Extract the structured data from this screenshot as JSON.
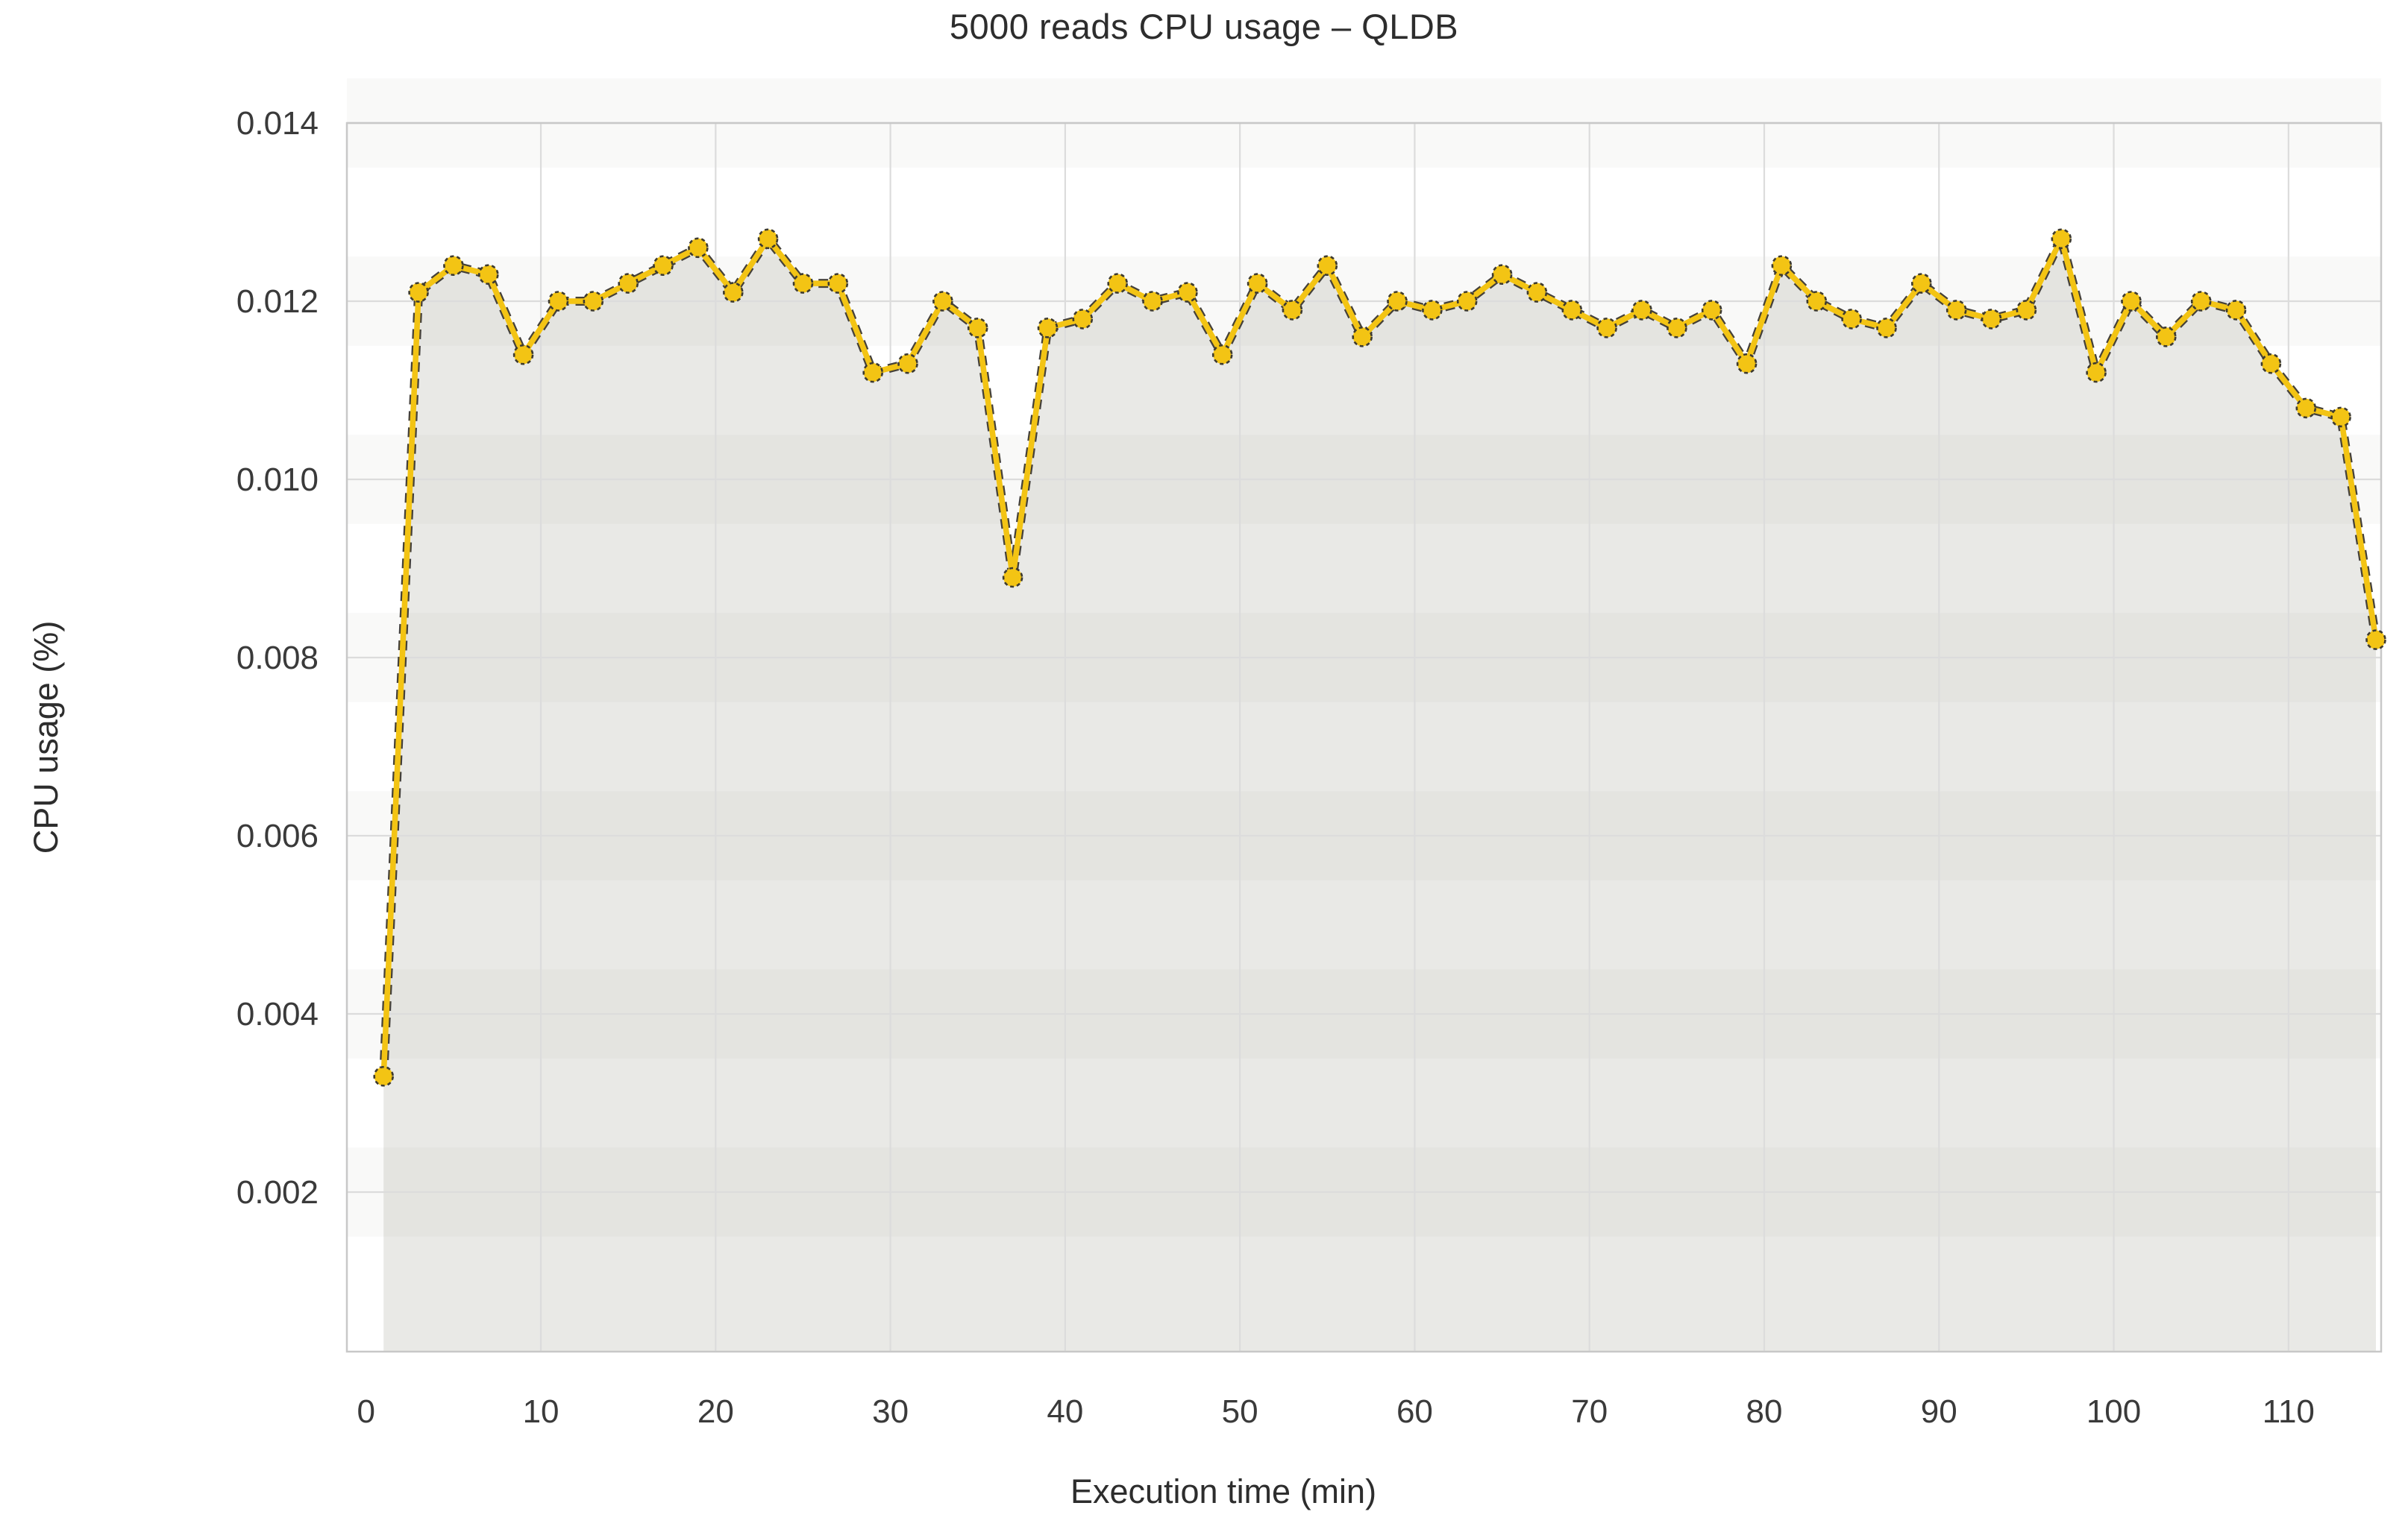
{
  "chart_data": {
    "type": "line",
    "title": "5000 reads CPU usage – QLDB",
    "xlabel": "Execution time (min)",
    "ylabel": "CPU usage (%)",
    "series_name": "CPU usage",
    "x": [
      1,
      3,
      5,
      7,
      9,
      11,
      13,
      15,
      17,
      19,
      21,
      23,
      25,
      27,
      29,
      31,
      33,
      35,
      37,
      39,
      41,
      43,
      45,
      47,
      49,
      51,
      53,
      55,
      57,
      59,
      61,
      63,
      65,
      67,
      69,
      71,
      73,
      75,
      77,
      79,
      81,
      83,
      85,
      87,
      89,
      91,
      93,
      95,
      97,
      99,
      101,
      103,
      105,
      107,
      109,
      111,
      113,
      115
    ],
    "values": [
      0.0033,
      0.0121,
      0.0124,
      0.0123,
      0.0114,
      0.012,
      0.012,
      0.0122,
      0.0124,
      0.0126,
      0.0121,
      0.0127,
      0.0122,
      0.0122,
      0.0112,
      0.0113,
      0.012,
      0.0117,
      0.0089,
      0.0117,
      0.0118,
      0.0122,
      0.012,
      0.0121,
      0.0114,
      0.0122,
      0.0119,
      0.0124,
      0.0116,
      0.012,
      0.0119,
      0.012,
      0.0123,
      0.0121,
      0.0119,
      0.0117,
      0.0119,
      0.0117,
      0.0119,
      0.0113,
      0.0124,
      0.012,
      0.0118,
      0.0117,
      0.0122,
      0.0119,
      0.0118,
      0.0119,
      0.0127,
      0.0112,
      0.012,
      0.0116,
      0.012,
      0.0119,
      0.0113,
      0.0108,
      0.0107,
      0.0082
    ],
    "xticks": [
      0,
      10,
      20,
      30,
      40,
      50,
      60,
      70,
      80,
      90,
      100,
      110
    ],
    "yticks": [
      0.002,
      0.004,
      0.006,
      0.008,
      0.01,
      0.012,
      0.014
    ],
    "ytick_labels": [
      "0.002",
      "0.004",
      "0.006",
      "0.008",
      "0.010",
      "0.012",
      "0.014"
    ],
    "xlim": [
      -1.1,
      115.3
    ],
    "ylim": [
      0,
      0.014
    ],
    "grid": true,
    "legend": "none",
    "colors": {
      "line": "#F3C414",
      "line_edge": "#45413A",
      "marker": "#F3C414",
      "marker_edge": "#3D3A30",
      "area_fill": "#E9E9E6",
      "gridline": "#DCDCDC",
      "band": "#8A8A7E",
      "spine": "#C8C8C8",
      "tick_text": "#3A3A3A"
    }
  }
}
